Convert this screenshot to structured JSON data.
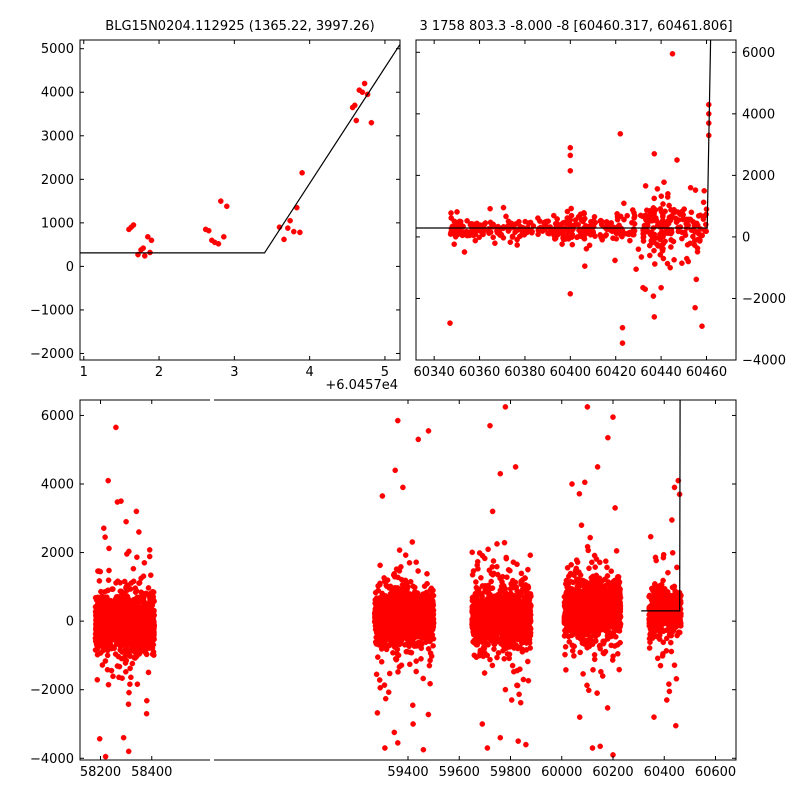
{
  "chart_data": [
    {
      "id": "top_left",
      "type": "scatter",
      "title": "BLG15N0204.112925 (1365.22, 3997.26)",
      "x_offset_label": "+6.0457e4",
      "xlim": [
        0.95,
        5.2
      ],
      "ylim": [
        -2150,
        5200
      ],
      "xticks": [
        1,
        2,
        3,
        4,
        5
      ],
      "yticks": [
        -2000,
        -1000,
        0,
        1000,
        2000,
        3000,
        4000,
        5000
      ],
      "y_axis_side": "left",
      "marker_color": "#ff0000",
      "line_color": "#000000",
      "model_line": [
        [
          0.95,
          310
        ],
        [
          3.4,
          310
        ],
        [
          5.2,
          5100
        ]
      ],
      "points": [
        [
          1.6,
          850
        ],
        [
          1.63,
          900
        ],
        [
          1.66,
          950
        ],
        [
          1.72,
          270
        ],
        [
          1.76,
          380
        ],
        [
          1.79,
          420
        ],
        [
          1.81,
          240
        ],
        [
          1.85,
          680
        ],
        [
          1.88,
          320
        ],
        [
          1.9,
          600
        ],
        [
          2.62,
          850
        ],
        [
          2.66,
          820
        ],
        [
          2.7,
          600
        ],
        [
          2.74,
          550
        ],
        [
          2.79,
          520
        ],
        [
          2.82,
          1500
        ],
        [
          2.86,
          680
        ],
        [
          2.9,
          1380
        ],
        [
          3.6,
          900
        ],
        [
          3.66,
          620
        ],
        [
          3.71,
          880
        ],
        [
          3.74,
          1050
        ],
        [
          3.79,
          800
        ],
        [
          3.83,
          1350
        ],
        [
          3.87,
          780
        ],
        [
          3.9,
          2150
        ],
        [
          4.57,
          3650
        ],
        [
          4.6,
          3700
        ],
        [
          4.62,
          3350
        ],
        [
          4.66,
          4050
        ],
        [
          4.7,
          4000
        ],
        [
          4.73,
          4200
        ],
        [
          4.77,
          3950
        ],
        [
          4.82,
          3300
        ]
      ]
    },
    {
      "id": "top_right",
      "type": "scatter",
      "title": "3 1758 803.3 -8.000 -8 [60460.317, 60461.806]",
      "xlim": [
        60332,
        60473
      ],
      "ylim": [
        -4000,
        6400
      ],
      "xticks": [
        60340,
        60360,
        60380,
        60400,
        60420,
        60440,
        60460
      ],
      "yticks": [
        -4000,
        -2000,
        0,
        2000,
        4000,
        6000
      ],
      "y_axis_side": "right",
      "marker_color": "#ff0000",
      "line_color": "#000000",
      "model_line": [
        [
          60332,
          290
        ],
        [
          60460.3,
          290
        ],
        [
          60461.8,
          6400
        ]
      ],
      "outliers": [
        [
          60347,
          -2800
        ],
        [
          60400,
          2900
        ],
        [
          60400,
          2650
        ],
        [
          60400,
          2150
        ],
        [
          60400,
          -1850
        ],
        [
          60422,
          3350
        ],
        [
          60423,
          -2950
        ],
        [
          60423,
          -3450
        ],
        [
          60429,
          -1050
        ],
        [
          60432,
          -1650
        ],
        [
          60437,
          2700
        ],
        [
          60437,
          -2600
        ],
        [
          60440,
          -1650
        ],
        [
          60443,
          1400
        ],
        [
          60445,
          5950
        ],
        [
          60447,
          2500
        ],
        [
          60455,
          -2300
        ],
        [
          60458,
          -2900
        ],
        [
          60461,
          4300
        ],
        [
          60461,
          4000
        ],
        [
          60461,
          3700
        ],
        [
          60461,
          3300
        ],
        [
          60459,
          1500
        ],
        [
          60460,
          900
        ],
        [
          60453,
          1600
        ],
        [
          60431,
          700
        ],
        [
          60430,
          -400
        ],
        [
          60441,
          -700
        ],
        [
          60444,
          -1000
        ],
        [
          60452,
          -800
        ]
      ],
      "clusters": [
        {
          "x_range": [
            60347,
            60358
          ],
          "count": 55,
          "y_center": 260,
          "y_spread": 300
        },
        {
          "x_range": [
            60358,
            60392
          ],
          "count": 110,
          "y_center": 260,
          "y_spread": 300
        },
        {
          "x_range": [
            60392,
            60411
          ],
          "count": 110,
          "y_center": 300,
          "y_spread": 420
        },
        {
          "x_range": [
            60413,
            60430
          ],
          "count": 60,
          "y_center": 300,
          "y_spread": 420
        },
        {
          "x_range": [
            60431,
            60445
          ],
          "count": 120,
          "y_center": 350,
          "y_spread": 700
        },
        {
          "x_range": [
            60445,
            60460
          ],
          "count": 70,
          "y_center": 300,
          "y_spread": 600
        }
      ]
    },
    {
      "id": "bottom",
      "type": "scatter",
      "title": "",
      "xlim": [
        58120,
        60680
      ],
      "ylim": [
        -4050,
        6450
      ],
      "xticks": [
        58200,
        58400,
        59400,
        59600,
        59800,
        60000,
        60200,
        60400,
        60600
      ],
      "yticks": [
        -4000,
        -2000,
        0,
        2000,
        4000,
        6000
      ],
      "y_axis_side": "left",
      "marker_color": "#ff0000",
      "line_color": "#000000",
      "model_line": [
        [
          60310,
          300
        ],
        [
          60460.3,
          300
        ],
        [
          60461.8,
          6450
        ]
      ],
      "clusters": [
        {
          "x_range": [
            58180,
            58410
          ],
          "count": 1400,
          "y_center": -50,
          "y_spread": 700
        },
        {
          "x_range": [
            59270,
            59500
          ],
          "count": 1500,
          "y_center": 80,
          "y_spread": 650
        },
        {
          "x_range": [
            59650,
            59880
          ],
          "count": 1300,
          "y_center": 120,
          "y_spread": 700
        },
        {
          "x_range": [
            60010,
            60230
          ],
          "count": 1500,
          "y_center": 350,
          "y_spread": 650
        },
        {
          "x_range": [
            60340,
            60465
          ],
          "count": 600,
          "y_center": 280,
          "y_spread": 560
        }
      ],
      "outliers": [
        [
          58260,
          5650
        ],
        [
          58280,
          3500
        ],
        [
          58230,
          4100
        ],
        [
          58340,
          3200
        ],
        [
          58300,
          2900
        ],
        [
          58350,
          2600
        ],
        [
          58220,
          -3950
        ],
        [
          58310,
          -3800
        ],
        [
          58290,
          -3400
        ],
        [
          58380,
          -2700
        ],
        [
          59360,
          5850
        ],
        [
          59440,
          5300
        ],
        [
          59480,
          5550
        ],
        [
          59350,
          4400
        ],
        [
          59380,
          3900
        ],
        [
          59300,
          3650
        ],
        [
          59420,
          -3000
        ],
        [
          59360,
          -3550
        ],
        [
          59310,
          -3700
        ],
        [
          59460,
          -3750
        ],
        [
          59780,
          6250
        ],
        [
          59720,
          5700
        ],
        [
          59820,
          4500
        ],
        [
          59760,
          4300
        ],
        [
          59730,
          3200
        ],
        [
          59690,
          -3000
        ],
        [
          59760,
          -3400
        ],
        [
          59830,
          -3500
        ],
        [
          59710,
          -3700
        ],
        [
          59860,
          -3600
        ],
        [
          60100,
          6250
        ],
        [
          60200,
          5950
        ],
        [
          60180,
          5350
        ],
        [
          60140,
          4500
        ],
        [
          60090,
          4050
        ],
        [
          60040,
          4000
        ],
        [
          60120,
          -3700
        ],
        [
          60150,
          -3650
        ],
        [
          60200,
          -3900
        ],
        [
          60070,
          -2800
        ],
        [
          60430,
          2950
        ],
        [
          60440,
          3900
        ],
        [
          60455,
          4100
        ],
        [
          60410,
          -2300
        ],
        [
          60445,
          -3050
        ],
        [
          60360,
          -2800
        ],
        [
          60420,
          -2050
        ],
        [
          60460,
          3700
        ]
      ]
    }
  ]
}
